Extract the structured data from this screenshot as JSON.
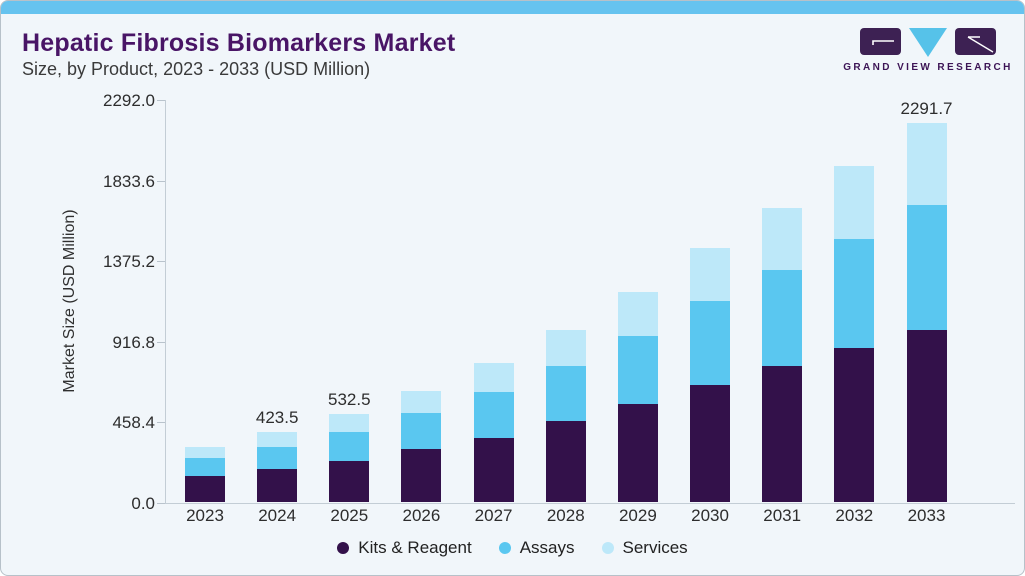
{
  "header": {
    "title": "Hepatic Fibrosis Biomarkers Market",
    "subtitle": "Size, by Product, 2023 - 2033 (USD Million)"
  },
  "logo": {
    "text": "GRAND VIEW RESEARCH",
    "purple": "#3d2153",
    "blue": "#56c2e9"
  },
  "chart_data": {
    "type": "bar",
    "stacked": true,
    "title": "Hepatic Fibrosis Biomarkers Market Size, by Product, 2023 - 2033 (USD Million)",
    "categories": [
      "2023",
      "2024",
      "2025",
      "2026",
      "2027",
      "2028",
      "2029",
      "2030",
      "2031",
      "2032",
      "2033"
    ],
    "series": [
      {
        "name": "Kits & Reagent",
        "color": "#33114a",
        "values": [
          160,
          203.5,
          252,
          322,
          392,
          492,
          596,
          712,
          822,
          932,
          1044
        ]
      },
      {
        "name": "Assays",
        "color": "#5ac7f0",
        "values": [
          108,
          129.5,
          176,
          216,
          276,
          334,
          410,
          504,
          582,
          662,
          752
        ]
      },
      {
        "name": "Services",
        "color": "#bde8f9",
        "values": [
          68,
          90.5,
          104.5,
          134,
          172,
          214,
          266,
          322,
          376,
          436,
          495.7
        ]
      }
    ],
    "totals_labeled": {
      "2024": "423.5",
      "2025": "532.5",
      "2033": "2291.7"
    },
    "ylabel": "Market Size (USD Million)",
    "ylim": [
      0,
      2292
    ],
    "yticks": [
      0,
      458.4,
      916.8,
      1375.2,
      1833.6,
      2292
    ],
    "ytick_labels": [
      "0.0",
      "458.4",
      "916.8",
      "1375.2",
      "1833.6",
      "2292.0"
    ],
    "xlabel": "",
    "grid": false,
    "legend_position": "bottom"
  },
  "colors": {
    "card_background": "#f1f6fa",
    "top_strip": "#66c3ef",
    "title": "#491566",
    "subtitle": "#3a3a3a",
    "axis_text": "#2d2d2d",
    "axis_line": "#c3cdd5"
  }
}
